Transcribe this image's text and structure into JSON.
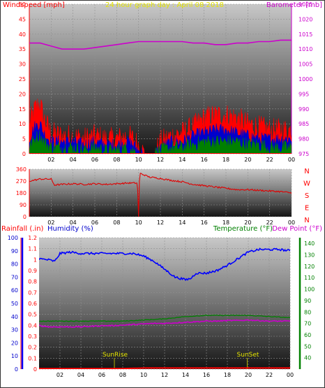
{
  "header": {
    "left_label": "Windspeed [mph]",
    "center_label": "24 hour graph day : April 08 2018",
    "right_label": "Barometer [mb]"
  },
  "wind_direction": {
    "compass_labels": [
      "N",
      "W",
      "S",
      "E",
      "N"
    ]
  },
  "lower_header": {
    "rainfall_label": "Rainfall (.in)",
    "humidity_label": "Humidity (%)",
    "temperature_label": "Temperature (°F)",
    "dewpoint_label": "Dew Point (°F)"
  },
  "markers": {
    "sunrise_label": "SunRise",
    "sunset_label": "SunSet"
  },
  "colors": {
    "wind_gust": "#ff0000",
    "wind_avg": "#0000cc",
    "wind_min": "#008000",
    "barometer": "#cc00cc",
    "direction": "#e00000",
    "humidity": "#0000ff",
    "temperature": "#008000",
    "dewpoint": "#cc00cc",
    "rainfall": "#ff0000",
    "marker": "#b0b000"
  },
  "chart_data": [
    {
      "type": "line",
      "x_ticks": [
        "02",
        "04",
        "06",
        "08",
        "10",
        "12",
        "14",
        "16",
        "18",
        "20",
        "22",
        "00"
      ],
      "xlim": [
        0,
        24
      ],
      "yleft_ticks": [
        0,
        5,
        10,
        15,
        20,
        25,
        30,
        35,
        40,
        45,
        50
      ],
      "yleft_lim": [
        0,
        50
      ],
      "yright_ticks": [
        975,
        980,
        985,
        990,
        995,
        1000,
        1005,
        1010,
        1015,
        1020,
        1025
      ],
      "yright_lim": [
        975,
        1025
      ],
      "series": [
        {
          "axis": "left",
          "style": "gust",
          "x": [
            0,
            0.5,
            1,
            1.3,
            2,
            3,
            4,
            5,
            6,
            7,
            8,
            9,
            9.5,
            10,
            10.5,
            11,
            11.5,
            12,
            13,
            14,
            15,
            16,
            17,
            18,
            19,
            20,
            21,
            22,
            23,
            24
          ],
          "values": [
            10,
            15,
            17,
            12,
            7,
            6,
            6,
            5,
            6,
            5,
            5,
            6,
            5,
            3,
            0,
            0,
            0,
            4,
            6,
            7,
            9,
            12,
            13,
            13,
            12,
            10,
            9,
            8,
            8,
            8
          ]
        },
        {
          "axis": "left",
          "style": "avg",
          "x": [
            0,
            0.5,
            1,
            1.3,
            2,
            3,
            4,
            5,
            6,
            7,
            8,
            9,
            9.5,
            10,
            10.5,
            11,
            11.5,
            12,
            13,
            14,
            15,
            16,
            17,
            18,
            19,
            20,
            21,
            22,
            23,
            24
          ],
          "values": [
            5,
            9,
            10,
            7,
            4,
            4,
            4,
            3,
            4,
            3,
            3,
            4,
            3,
            1,
            0,
            0,
            0,
            2,
            4,
            4,
            6,
            7,
            8,
            8,
            7,
            6,
            5,
            5,
            5,
            5
          ]
        },
        {
          "axis": "left",
          "style": "min",
          "x": [
            0,
            0.5,
            1,
            1.3,
            2,
            3,
            4,
            5,
            6,
            7,
            8,
            9,
            9.5,
            10,
            10.5,
            11,
            11.5,
            12,
            13,
            14,
            15,
            16,
            17,
            18,
            19,
            20,
            21,
            22,
            23,
            24
          ],
          "values": [
            2,
            5,
            6,
            4,
            2,
            2,
            2,
            1,
            2,
            1,
            1,
            2,
            1,
            0,
            0,
            0,
            0,
            1,
            2,
            2,
            3,
            4,
            4,
            4,
            4,
            3,
            3,
            2,
            2,
            2
          ]
        },
        {
          "axis": "right",
          "style": "baro",
          "x": [
            0,
            1,
            2,
            3,
            4,
            5,
            6,
            7,
            8,
            9,
            10,
            11,
            12,
            13,
            14,
            15,
            16,
            17,
            18,
            19,
            20,
            21,
            22,
            23,
            24
          ],
          "values": [
            1012,
            1012,
            1011,
            1010,
            1010,
            1010,
            1010.5,
            1011,
            1011.5,
            1012,
            1012.5,
            1012.5,
            1012.5,
            1012.5,
            1012.5,
            1012,
            1012,
            1011.5,
            1011.5,
            1012,
            1012,
            1012.5,
            1012.5,
            1013,
            1013
          ]
        }
      ]
    },
    {
      "type": "line",
      "x_ticks": [
        "02",
        "04",
        "06",
        "08",
        "10",
        "12",
        "14",
        "16",
        "18",
        "20",
        "22",
        "00"
      ],
      "xlim": [
        0,
        24
      ],
      "y_ticks": [
        0,
        90,
        180,
        270,
        360
      ],
      "ylim": [
        0,
        360
      ],
      "series": [
        {
          "style": "dir",
          "x": [
            0,
            1,
            2,
            2.3,
            3,
            4,
            5,
            6,
            7,
            8,
            9,
            9.9,
            10,
            10.1,
            11,
            12,
            13,
            14,
            15,
            16,
            17,
            18,
            19,
            20,
            21,
            22,
            23,
            24
          ],
          "values": [
            270,
            285,
            285,
            240,
            245,
            250,
            245,
            250,
            245,
            250,
            255,
            255,
            0,
            330,
            300,
            290,
            275,
            265,
            245,
            235,
            225,
            215,
            205,
            205,
            200,
            195,
            190,
            180
          ]
        }
      ]
    },
    {
      "type": "line",
      "x_ticks": [
        "02",
        "04",
        "06",
        "08",
        "10",
        "12",
        "14",
        "16",
        "18",
        "20",
        "22",
        "00"
      ],
      "xlim": [
        0,
        24
      ],
      "y_rain_ticks": [
        0,
        0.1,
        0.2,
        0.3,
        0.4,
        0.5,
        0.6,
        0.7,
        0.8,
        0.9,
        1,
        1.1,
        1.2
      ],
      "y_rain_lim": [
        0,
        1.2
      ],
      "y_humidity_ticks": [
        0,
        10,
        20,
        30,
        40,
        50,
        60,
        70,
        80,
        90,
        100
      ],
      "y_humidity_lim": [
        0,
        100
      ],
      "y_temp_ticks": [
        40,
        50,
        60,
        70,
        80,
        90,
        100,
        110,
        120,
        130,
        140
      ],
      "y_temp_lim": [
        30,
        145
      ],
      "series": [
        {
          "axis": "humidity",
          "style": "hum",
          "x": [
            0,
            1,
            1.5,
            2,
            3,
            4,
            5,
            6,
            7,
            8,
            9,
            10,
            11,
            12,
            13,
            14,
            14.5,
            15,
            16,
            17,
            18,
            19,
            20,
            21,
            22,
            23,
            24
          ],
          "values": [
            84,
            83,
            82,
            88,
            89,
            88,
            88,
            88,
            88,
            88,
            88,
            86,
            82,
            76,
            70,
            68,
            69,
            73,
            73,
            75,
            79,
            84,
            89,
            91,
            91,
            91,
            90
          ]
        },
        {
          "axis": "temp",
          "style": "temp",
          "x": [
            0,
            2,
            4,
            6,
            8,
            10,
            12,
            14,
            16,
            18,
            20,
            22,
            24
          ],
          "values": [
            72,
            72,
            72,
            72,
            72,
            73,
            74,
            76,
            77,
            77,
            77,
            76,
            75
          ]
        },
        {
          "axis": "temp",
          "style": "dew",
          "x": [
            0,
            1,
            2,
            3,
            4,
            5,
            6,
            7,
            8,
            9,
            10,
            11,
            12,
            13,
            14,
            15,
            16,
            17,
            18,
            19,
            20,
            21,
            22,
            23,
            24
          ],
          "values": [
            68,
            67,
            67,
            67,
            67,
            67.5,
            68,
            68,
            68.5,
            69,
            69.5,
            70,
            70,
            70.5,
            71,
            71.5,
            72,
            72,
            72.5,
            72.5,
            73,
            72.5,
            72,
            72,
            72
          ]
        },
        {
          "axis": "rain",
          "style": "rain",
          "x": [
            0,
            6,
            8,
            10,
            12,
            16,
            20,
            24
          ],
          "values": [
            0.005,
            0.005,
            0.005,
            0.01,
            0.01,
            0.01,
            0.01,
            0.01
          ]
        }
      ],
      "markers": [
        {
          "x": 7.2
        },
        {
          "x": 19.9
        }
      ]
    }
  ]
}
